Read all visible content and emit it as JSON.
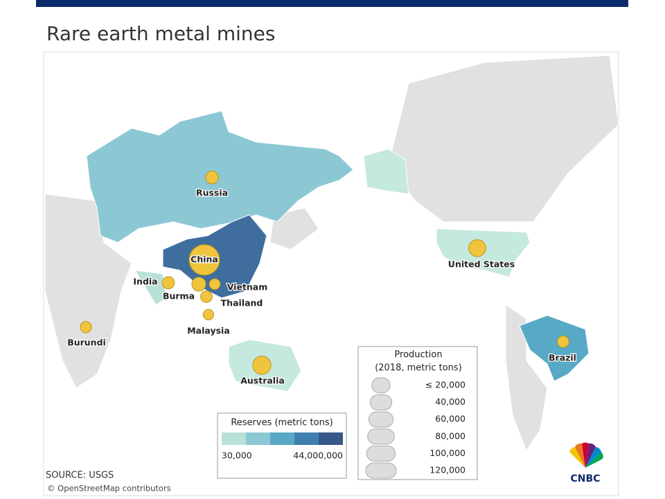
{
  "title": "Rare earth metal mines",
  "countries": [
    {
      "name": "Russia",
      "production": 2600
    },
    {
      "name": "China",
      "production": 120000
    },
    {
      "name": "India",
      "production": 1800
    },
    {
      "name": "Burma",
      "production": 5000
    },
    {
      "name": "Vietnam",
      "production": 400
    },
    {
      "name": "Thailand",
      "production": 1000
    },
    {
      "name": "Malaysia",
      "production": 200
    },
    {
      "name": "Burundi",
      "production": 630
    },
    {
      "name": "Australia",
      "production": 20000
    },
    {
      "name": "United States",
      "production": 15000
    },
    {
      "name": "Brazil",
      "production": 1000
    }
  ],
  "production_legend": {
    "title": "Production",
    "subtitle": "(2018, metric tons)",
    "sizes": [
      {
        "value": 20000,
        "label": "≤ 20,000"
      },
      {
        "value": 40000,
        "label": "40,000"
      },
      {
        "value": 60000,
        "label": "60,000"
      },
      {
        "value": 80000,
        "label": "80,000"
      },
      {
        "value": 100000,
        "label": "100,000"
      },
      {
        "value": 120000,
        "label": "120,000"
      }
    ]
  },
  "reserves_legend": {
    "title": "Reserves (metric tons)",
    "min": {
      "value": 30000,
      "label": "30,000"
    },
    "max": {
      "value": 44000000,
      "label": "44,000,000"
    },
    "colors": [
      "#b9e1d8",
      "#8cc8d4",
      "#58a9c6",
      "#3f7fae",
      "#36588a"
    ]
  },
  "source": "SOURCE: USGS",
  "credit": "© OpenStreetMap contributors",
  "logo": "CNBC"
}
